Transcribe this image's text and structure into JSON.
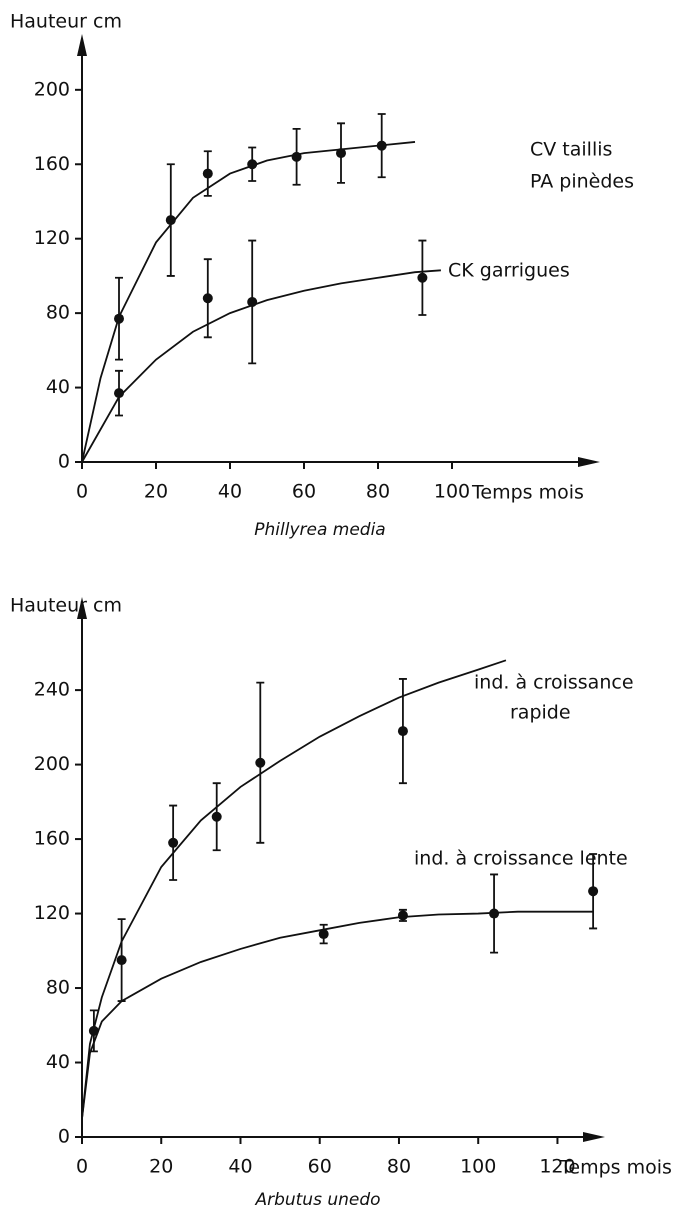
{
  "chart_data": [
    {
      "type": "scatter",
      "ylabel": "Hauteur cm",
      "xlabel": "Temps mois",
      "caption": "Phillyrea media",
      "xlim": [
        0,
        140
      ],
      "ylim": [
        0,
        230
      ],
      "xticks": [
        0,
        20,
        40,
        60,
        80,
        100
      ],
      "yticks": [
        0,
        40,
        80,
        120,
        160,
        200
      ],
      "series": [
        {
          "labels": [
            "CV taillis",
            "PA pinèdes"
          ],
          "color": "#111",
          "x": [
            10,
            24,
            34,
            46,
            58,
            70,
            81
          ],
          "values": [
            77,
            130,
            155,
            160,
            164,
            166,
            170
          ],
          "errors": [
            22,
            30,
            12,
            9,
            15,
            16,
            17
          ],
          "fit_x": [
            0,
            5,
            10,
            20,
            30,
            40,
            50,
            60,
            70,
            80,
            90
          ],
          "fit_y": [
            0,
            45,
            78,
            118,
            142,
            155,
            162,
            166,
            168,
            170,
            172
          ]
        },
        {
          "labels": [
            "CK garrigues"
          ],
          "color": "#111",
          "x": [
            10,
            34,
            46,
            92
          ],
          "values": [
            37,
            88,
            86,
            99
          ],
          "errors": [
            12,
            21,
            33,
            20
          ],
          "fit_x": [
            0,
            10,
            20,
            30,
            40,
            50,
            60,
            70,
            80,
            90,
            97
          ],
          "fit_y": [
            0,
            35,
            55,
            70,
            80,
            87,
            92,
            96,
            99,
            102,
            103
          ]
        }
      ]
    },
    {
      "type": "scatter",
      "ylabel": "Hauteur cm",
      "xlabel": "Temps mois",
      "caption": "Arbutus unedo",
      "xlim": [
        0,
        132
      ],
      "ylim": [
        0,
        290
      ],
      "xticks": [
        0,
        20,
        40,
        60,
        80,
        100,
        120
      ],
      "yticks": [
        0,
        40,
        80,
        120,
        160,
        200,
        240
      ],
      "series": [
        {
          "labels": [
            "ind. à croissance",
            "rapide"
          ],
          "color": "#111",
          "x": [
            10,
            23,
            34,
            45,
            81
          ],
          "values": [
            95,
            158,
            172,
            201,
            218
          ],
          "errors": [
            22,
            20,
            18,
            43,
            28
          ],
          "fit_x": [
            0,
            2,
            5,
            10,
            20,
            30,
            40,
            50,
            60,
            70,
            80,
            90,
            100,
            107
          ],
          "fit_y": [
            10,
            50,
            75,
            105,
            145,
            170,
            188,
            202,
            215,
            226,
            236,
            244,
            251,
            256
          ]
        },
        {
          "labels": [
            "ind. à croissance lente"
          ],
          "color": "#111",
          "x": [
            3,
            61,
            81,
            104,
            129
          ],
          "values": [
            57,
            109,
            119,
            120,
            132
          ],
          "errors": [
            11,
            5,
            3,
            21,
            20
          ],
          "fit_x": [
            0,
            2,
            5,
            10,
            20,
            30,
            40,
            50,
            60,
            70,
            80,
            90,
            100,
            110,
            129
          ],
          "fit_y": [
            10,
            45,
            62,
            73,
            85,
            94,
            101,
            107,
            111,
            115,
            118,
            119.5,
            120,
            121,
            121
          ]
        }
      ]
    }
  ]
}
